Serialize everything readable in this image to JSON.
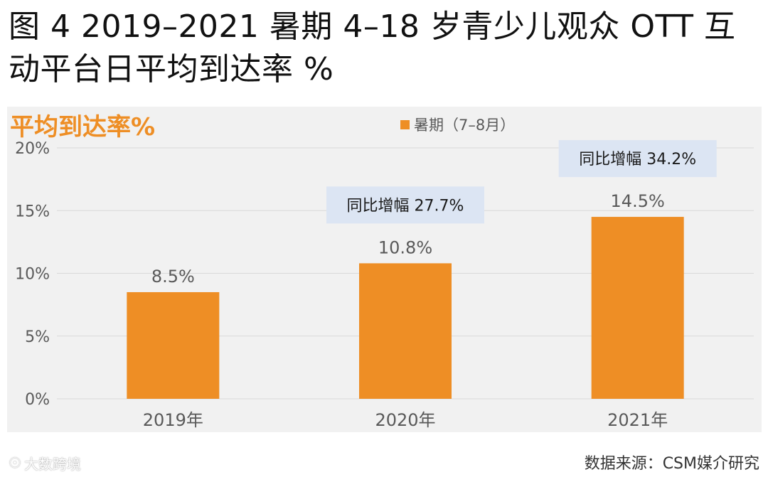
{
  "figure_title": "图 4 2019–2021 暑期 4–18 岁青少儿观众 OTT 互动平台日平均到达率 %",
  "source_note": "数据来源：CSM媒介研究",
  "watermark": {
    "text": "大数跨境",
    "icon": "wechat-channel-logo-icon"
  },
  "colors": {
    "bar": "#EE8E25",
    "panel_bg": "#F1F1F1",
    "callout_bg": "#DCE5F3",
    "chart_title": "#EE8E25",
    "axis_text": "#595959",
    "gridline": "#D9D9D9"
  },
  "chart_data": {
    "type": "bar",
    "title": "平均到达率%",
    "categories": [
      "2019年",
      "2020年",
      "2021年"
    ],
    "series": [
      {
        "name": "暑期（7–8月）",
        "values": [
          8.5,
          10.8,
          14.5
        ]
      }
    ],
    "data_labels": [
      "8.5%",
      "10.8%",
      "14.5%"
    ],
    "ylim": [
      0,
      20
    ],
    "yticks": [
      0,
      5,
      10,
      15,
      20
    ],
    "ytick_labels": [
      "0%",
      "5%",
      "10%",
      "15%",
      "20%"
    ],
    "grid": true,
    "legend_position": "top-center",
    "annotations": [
      {
        "category": "2020年",
        "text": "同比增幅 27.7%"
      },
      {
        "category": "2021年",
        "text": "同比增幅 34.2%"
      }
    ]
  }
}
